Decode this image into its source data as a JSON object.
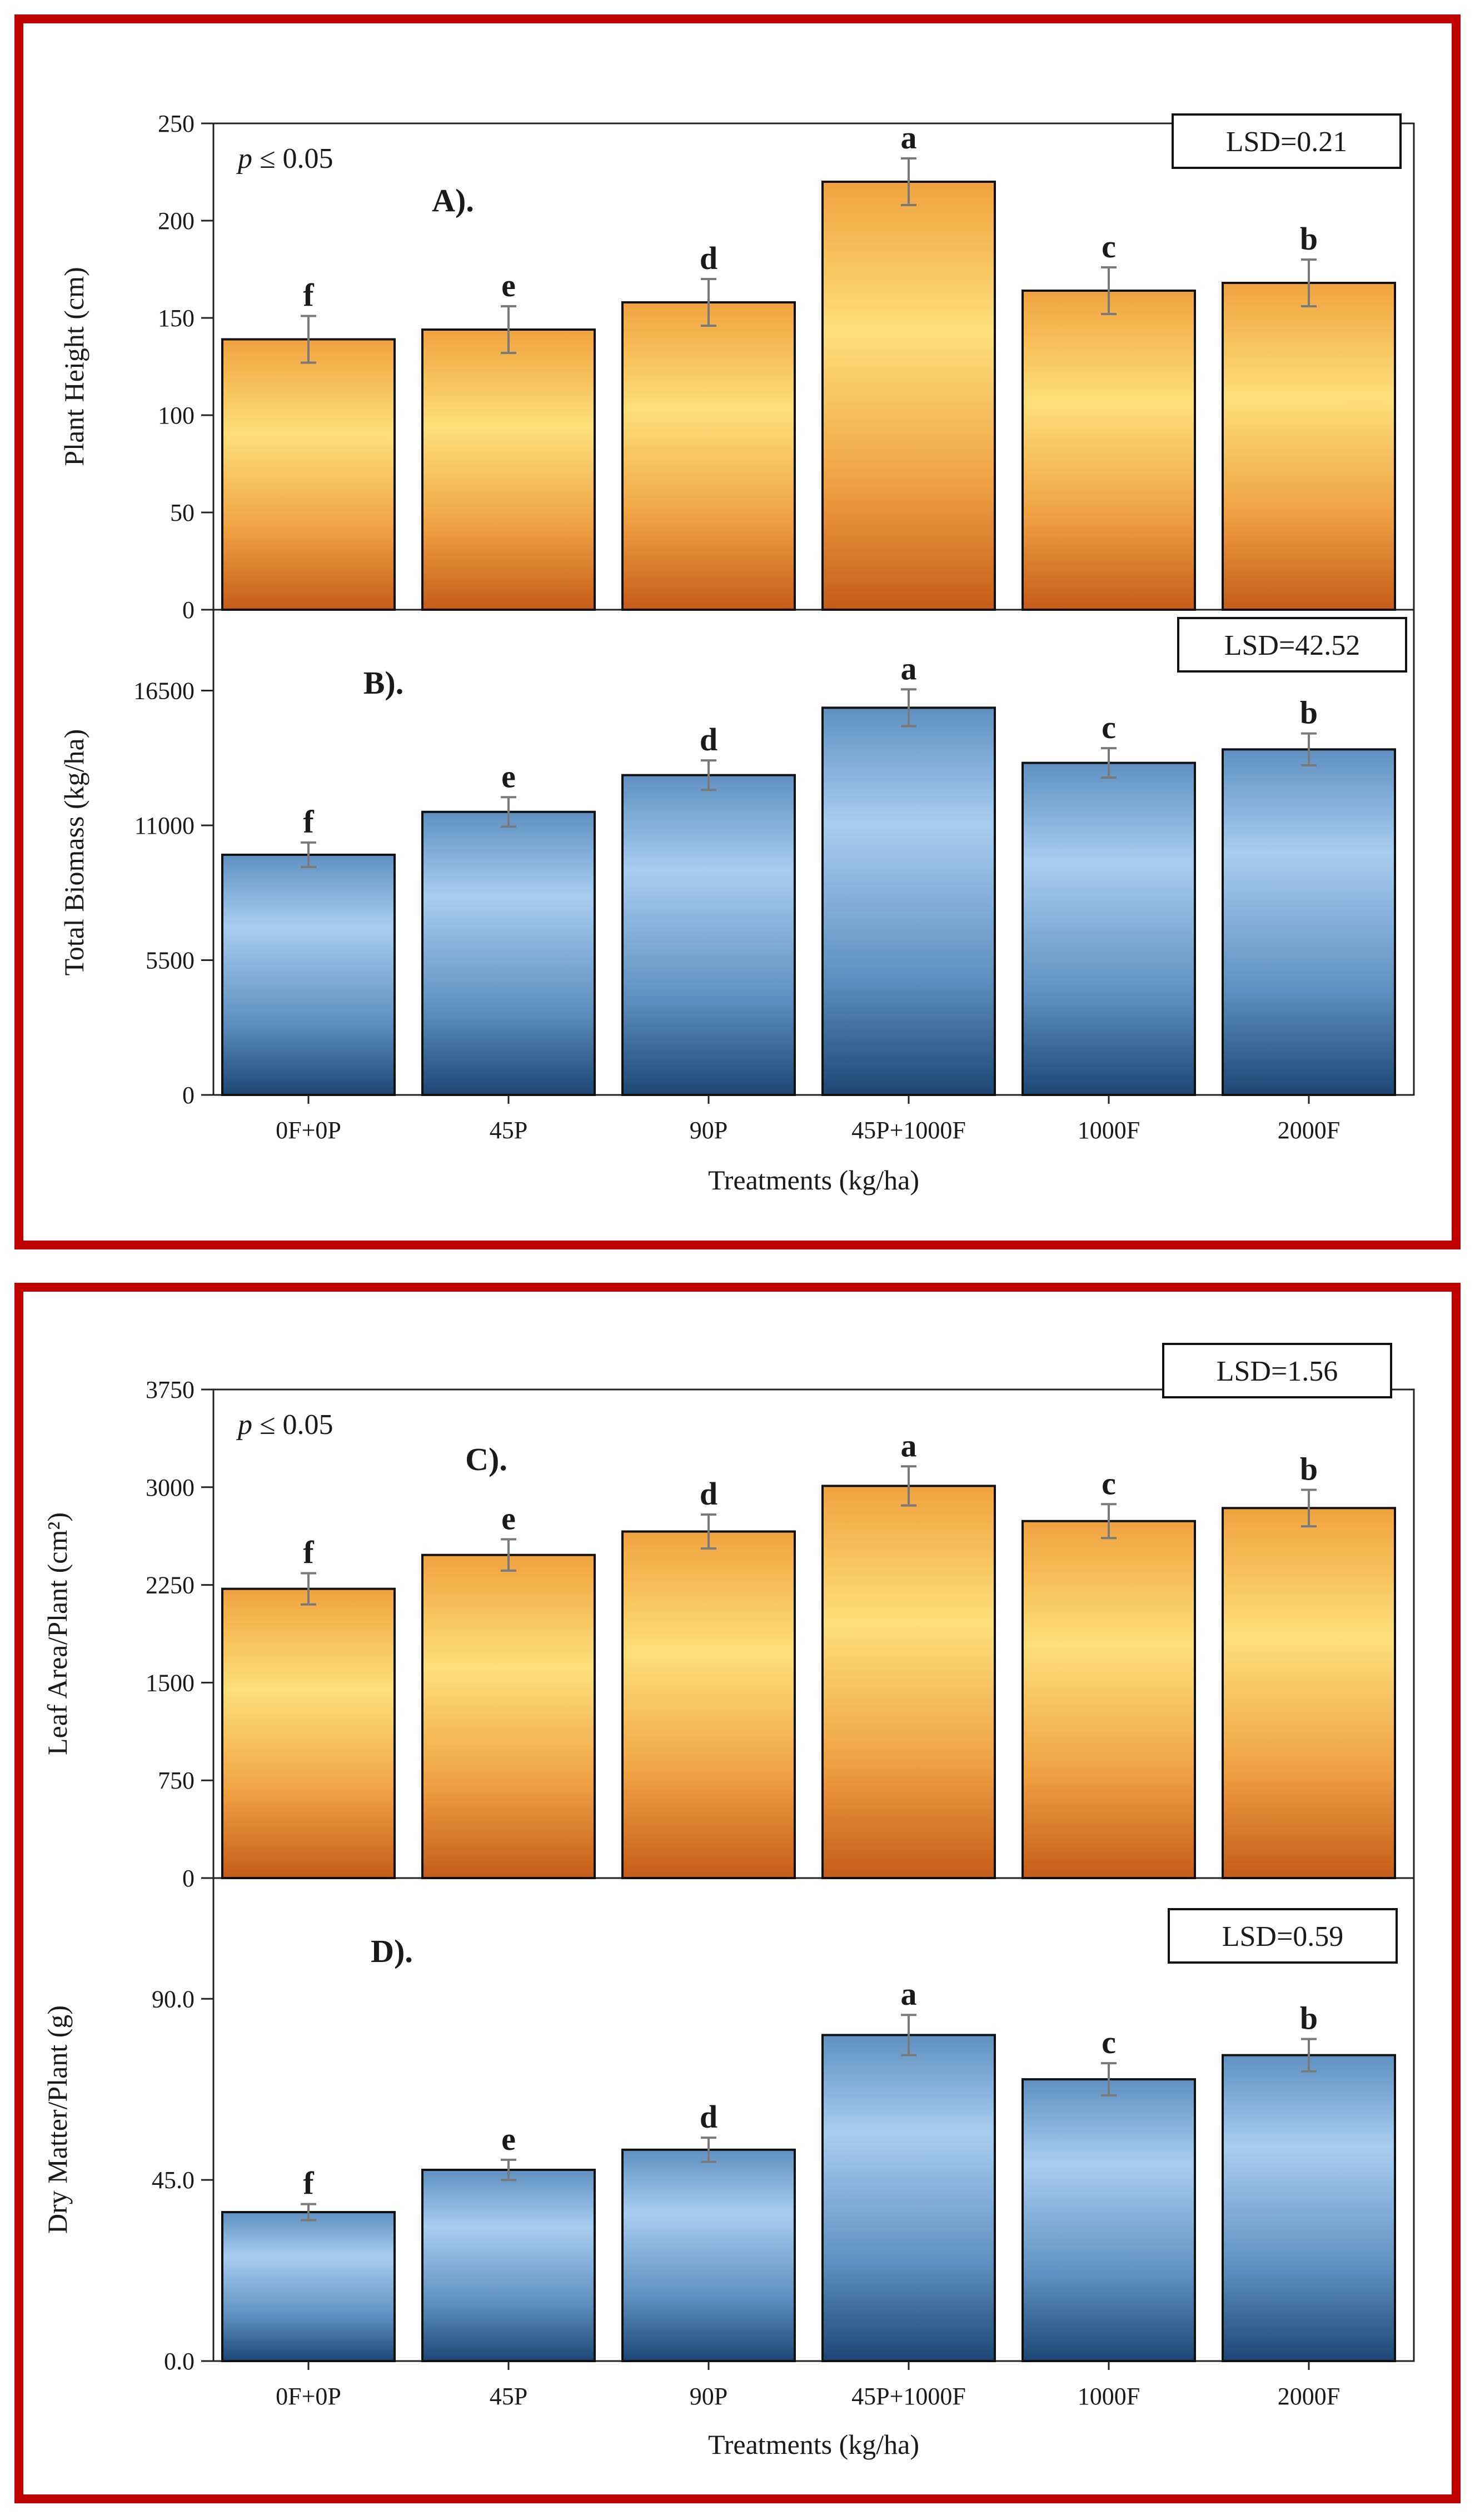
{
  "figure": {
    "pval_label": "p ≤ 0.05",
    "pval_italic": "p",
    "pval_rest": " ≤ 0.05",
    "pval_rest_small": " ≤ 0.05"
  },
  "colors": {
    "frame": "#c00000",
    "orange_light": "#fde07a",
    "orange_mid": "#f3a843",
    "orange_dark": "#c9621a",
    "blue_light": "#a9cdef",
    "blue_mid": "#6a9bc9",
    "blue_dark": "#1f4a78",
    "bar_edge": "#111111",
    "error_bar": "#7a7a7a"
  },
  "chart_data": [
    {
      "id": "A",
      "type": "bar",
      "panel_label": "A).",
      "title": "",
      "ylabel": "Plant Height (cm)",
      "xlabel": "",
      "categories": [
        "0F+0P",
        "45P",
        "90P",
        "45P+1000F",
        "1000F",
        "2000F"
      ],
      "values": [
        139,
        144,
        158,
        220,
        164,
        168
      ],
      "errors": [
        12,
        12,
        12,
        12,
        12,
        12
      ],
      "letters": [
        "f",
        "e",
        "d",
        "a",
        "c",
        "b"
      ],
      "ylim": [
        0,
        250
      ],
      "yticks": [
        "0",
        "50",
        "100",
        "150",
        "200",
        "250"
      ],
      "lsd": "LSD=0.21",
      "pval": true,
      "style": "orange"
    },
    {
      "id": "B",
      "type": "bar",
      "panel_label": "B).",
      "title": "",
      "ylabel": "Total Biomass (kg/ha)",
      "xlabel": "Treatments (kg/ha)",
      "categories": [
        "0F+0P",
        "45P",
        "90P",
        "45P+1000F",
        "1000F",
        "2000F"
      ],
      "values": [
        9800,
        11550,
        13050,
        15800,
        13550,
        14100
      ],
      "errors": [
        500,
        600,
        600,
        750,
        600,
        650
      ],
      "letters": [
        "f",
        "e",
        "d",
        "a",
        "c",
        "b"
      ],
      "ylim": [
        0,
        19800
      ],
      "yticks": [
        "0",
        "5500",
        "11000",
        "16500"
      ],
      "lsd": "LSD=42.52",
      "pval": false,
      "style": "blue"
    },
    {
      "id": "C",
      "type": "bar",
      "panel_label": "C).",
      "title": "",
      "ylabel": "Leaf Area/Plant (cm²)",
      "xlabel": "",
      "categories": [
        "0F+0P",
        "45P",
        "90P",
        "45P+1000F",
        "1000F",
        "2000F"
      ],
      "values": [
        2220,
        2480,
        2660,
        3010,
        2740,
        2840
      ],
      "errors": [
        120,
        120,
        130,
        150,
        130,
        140
      ],
      "letters": [
        "f",
        "e",
        "d",
        "a",
        "c",
        "b"
      ],
      "ylim": [
        0,
        3750
      ],
      "yticks": [
        "0",
        "750",
        "1500",
        "2250",
        "3000",
        "3750"
      ],
      "lsd": "LSD=1.56",
      "pval": true,
      "style": "orange"
    },
    {
      "id": "D",
      "type": "bar",
      "panel_label": "D).",
      "title": "",
      "ylabel": "Dry Matter/Plant (g)",
      "xlabel": "Treatments (kg/ha)",
      "categories": [
        "0F+0P",
        "45P",
        "90P",
        "45P+1000F",
        "1000F",
        "2000F"
      ],
      "values": [
        37,
        47.5,
        52.5,
        81,
        70,
        76
      ],
      "errors": [
        2,
        2.5,
        3,
        5,
        4,
        4
      ],
      "letters": [
        "f",
        "e",
        "d",
        "a",
        "c",
        "b"
      ],
      "ylim": [
        0,
        120
      ],
      "yticks": [
        "0.0",
        "45.0",
        "90.0"
      ],
      "lsd": "LSD=0.59",
      "pval": false,
      "style": "blue"
    }
  ]
}
